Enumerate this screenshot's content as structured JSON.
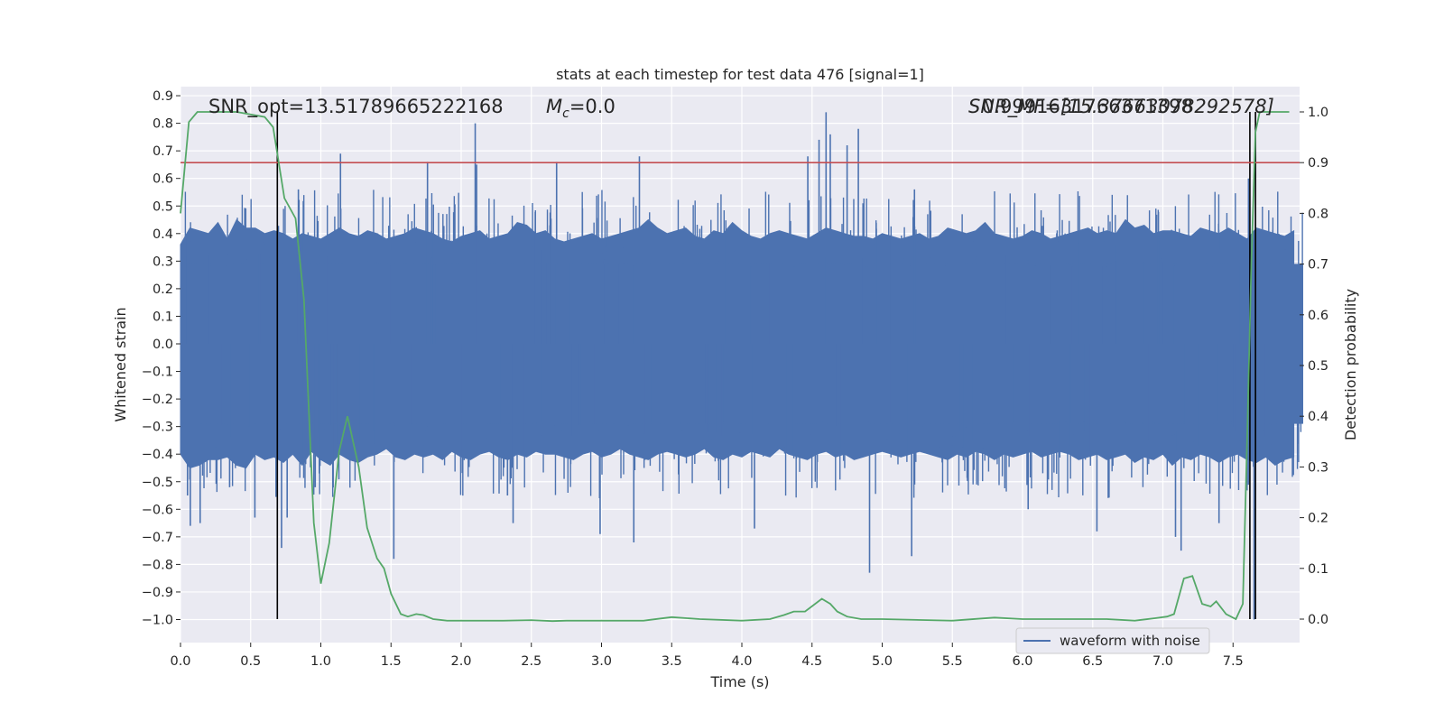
{
  "chart_data": {
    "type": "line",
    "title": "stats at each timestep for test data 476 [signal=1]",
    "xlabel": "Time (s)",
    "ylabel_left": "Whitened strain",
    "ylabel_right": "Detection probability",
    "xlim": [
      0.0,
      8.0
    ],
    "ylim_left": [
      -1.09,
      0.94
    ],
    "ylim_right": [
      -0.05,
      1.05
    ],
    "x_ticks": [
      "0.0",
      "0.5",
      "1.0",
      "1.5",
      "2.0",
      "2.5",
      "3.0",
      "3.5",
      "4.0",
      "4.5",
      "5.0",
      "5.5",
      "6.0",
      "6.5",
      "7.0",
      "7.5"
    ],
    "y_ticks_left": [
      "0.9",
      "0.8",
      "0.7",
      "0.6",
      "0.5",
      "0.4",
      "0.3",
      "0.2",
      "0.1",
      "0.0",
      "-0.1",
      "-0.2",
      "-0.3",
      "-0.4",
      "-0.5",
      "-0.6",
      "-0.7",
      "-0.8",
      "-0.9",
      "-1.0"
    ],
    "y_ticks_right": [
      "1.0",
      "0.9",
      "0.8",
      "0.7",
      "0.6",
      "0.5",
      "0.4",
      "0.3",
      "0.2",
      "0.1",
      "0.0"
    ],
    "annotations": {
      "snr_opt": "SNR_opt=13.51789665222168",
      "mc": "=0.0",
      "mc_symbol": "M",
      "mc_sub": "c",
      "snr_overlap_a": "SNR_MF=[15.37663078292578]",
      "snr_overlap_b": "0.9991631766371398"
    },
    "legend": {
      "placement": "lower-right",
      "entries": [
        "waveform with noise"
      ]
    },
    "threshold_right": 0.9,
    "vlines_time": [
      0.69,
      7.62,
      7.66
    ],
    "waveform": {
      "name": "waveform with noise",
      "color": "#4c72b0",
      "envelope_pos": [
        0.36,
        0.42,
        0.41,
        0.4,
        0.44,
        0.38,
        0.45,
        0.42,
        0.42,
        0.4,
        0.41,
        0.4,
        0.38,
        0.4,
        0.39,
        0.38,
        0.4,
        0.42,
        0.4,
        0.39,
        0.41,
        0.4,
        0.38,
        0.39,
        0.4,
        0.42,
        0.41,
        0.4,
        0.38,
        0.37,
        0.39,
        0.4,
        0.41,
        0.38,
        0.39,
        0.4,
        0.44,
        0.43,
        0.4,
        0.41,
        0.38,
        0.37,
        0.38,
        0.39,
        0.4,
        0.38,
        0.39,
        0.4,
        0.41,
        0.42,
        0.45,
        0.42,
        0.4,
        0.41,
        0.42,
        0.39,
        0.38,
        0.41,
        0.4,
        0.44,
        0.41,
        0.39,
        0.38,
        0.4,
        0.41,
        0.4,
        0.39,
        0.38,
        0.4,
        0.42,
        0.41,
        0.4,
        0.39,
        0.39,
        0.38,
        0.4,
        0.39,
        0.38,
        0.39,
        0.4,
        0.38,
        0.39,
        0.42,
        0.41,
        0.4,
        0.41,
        0.44,
        0.4,
        0.39,
        0.38,
        0.39,
        0.41,
        0.4,
        0.38,
        0.39,
        0.4,
        0.41,
        0.42,
        0.4,
        0.41,
        0.4,
        0.45,
        0.42,
        0.43,
        0.4,
        0.41,
        0.41,
        0.4,
        0.39,
        0.42,
        0.41,
        0.4,
        0.42,
        0.4,
        0.38,
        0.42,
        0.41,
        0.4,
        0.39,
        0.41
      ],
      "envelope_neg": [
        -0.4,
        -0.45,
        -0.44,
        -0.42,
        -0.42,
        -0.41,
        -0.44,
        -0.45,
        -0.4,
        -0.42,
        -0.41,
        -0.43,
        -0.4,
        -0.44,
        -0.39,
        -0.42,
        -0.44,
        -0.4,
        -0.42,
        -0.43,
        -0.41,
        -0.4,
        -0.38,
        -0.41,
        -0.42,
        -0.4,
        -0.41,
        -0.4,
        -0.42,
        -0.39,
        -0.41,
        -0.42,
        -0.4,
        -0.39,
        -0.41,
        -0.42,
        -0.4,
        -0.41,
        -0.39,
        -0.4,
        -0.4,
        -0.41,
        -0.42,
        -0.4,
        -0.39,
        -0.41,
        -0.4,
        -0.38,
        -0.4,
        -0.41,
        -0.42,
        -0.4,
        -0.39,
        -0.4,
        -0.41,
        -0.4,
        -0.38,
        -0.41,
        -0.42,
        -0.4,
        -0.41,
        -0.39,
        -0.4,
        -0.41,
        -0.38,
        -0.4,
        -0.41,
        -0.42,
        -0.4,
        -0.39,
        -0.41,
        -0.4,
        -0.42,
        -0.41,
        -0.4,
        -0.39,
        -0.4,
        -0.41,
        -0.4,
        -0.39,
        -0.4,
        -0.41,
        -0.42,
        -0.4,
        -0.41,
        -0.39,
        -0.4,
        -0.42,
        -0.4,
        -0.41,
        -0.4,
        -0.39,
        -0.41,
        -0.4,
        -0.39,
        -0.4,
        -0.42,
        -0.41,
        -0.4,
        -0.42,
        -0.41,
        -0.4,
        -0.43,
        -0.41,
        -0.42,
        -0.4,
        -0.44,
        -0.41,
        -0.42,
        -0.4,
        -0.41,
        -0.43,
        -0.41,
        -0.4,
        -0.42,
        -0.43,
        -0.41,
        -0.44,
        -0.42,
        -0.41
      ],
      "spikes": [
        {
          "t": 0.05,
          "v": -0.55
        },
        {
          "t": 0.07,
          "v": -0.66
        },
        {
          "t": 0.14,
          "v": -0.65
        },
        {
          "t": 0.35,
          "v": -0.52
        },
        {
          "t": 0.53,
          "v": -0.63
        },
        {
          "t": 0.72,
          "v": -0.74
        },
        {
          "t": 0.76,
          "v": -0.63
        },
        {
          "t": 0.84,
          "v": 0.56
        },
        {
          "t": 0.96,
          "v": -0.52
        },
        {
          "t": 1.14,
          "v": 0.69
        },
        {
          "t": 1.52,
          "v": -0.78
        },
        {
          "t": 1.76,
          "v": 0.66
        },
        {
          "t": 2.1,
          "v": 0.8
        },
        {
          "t": 2.11,
          "v": 0.65
        },
        {
          "t": 2.33,
          "v": -0.55
        },
        {
          "t": 2.37,
          "v": -0.65
        },
        {
          "t": 2.68,
          "v": 0.66
        },
        {
          "t": 2.99,
          "v": -0.69
        },
        {
          "t": 3.23,
          "v": -0.72
        },
        {
          "t": 3.27,
          "v": 0.68
        },
        {
          "t": 4.09,
          "v": -0.67
        },
        {
          "t": 4.47,
          "v": 0.68
        },
        {
          "t": 4.55,
          "v": 0.74
        },
        {
          "t": 4.6,
          "v": 0.84
        },
        {
          "t": 4.63,
          "v": 0.76
        },
        {
          "t": 4.83,
          "v": 0.78
        },
        {
          "t": 4.75,
          "v": 0.72
        },
        {
          "t": 4.91,
          "v": -0.83
        },
        {
          "t": 5.21,
          "v": -0.77
        },
        {
          "t": 5.23,
          "v": 0.56
        },
        {
          "t": 6.04,
          "v": -0.6
        },
        {
          "t": 6.53,
          "v": -0.68
        },
        {
          "t": 7.09,
          "v": -0.7
        },
        {
          "t": 7.13,
          "v": -0.75
        },
        {
          "t": 7.4,
          "v": -0.65
        },
        {
          "t": 7.61,
          "v": 0.6
        },
        {
          "t": 7.65,
          "v": -1.0
        }
      ]
    },
    "detection_probability": {
      "name": "detection probability",
      "color": "#55a868",
      "x": [
        0.0,
        0.06,
        0.12,
        0.2,
        0.4,
        0.6,
        0.66,
        0.74,
        0.82,
        0.88,
        0.95,
        1.0,
        1.06,
        1.13,
        1.19,
        1.27,
        1.33,
        1.4,
        1.45,
        1.5,
        1.57,
        1.62,
        1.68,
        1.73,
        1.8,
        1.9,
        2.1,
        2.3,
        2.5,
        2.65,
        2.75,
        3.0,
        3.3,
        3.5,
        3.7,
        4.0,
        4.2,
        4.3,
        4.37,
        4.45,
        4.57,
        4.63,
        4.68,
        4.75,
        4.85,
        5.0,
        5.5,
        5.8,
        6.0,
        6.6,
        6.8,
        6.95,
        7.03,
        7.08,
        7.15,
        7.21,
        7.28,
        7.34,
        7.38,
        7.45,
        7.52,
        7.57,
        7.6,
        7.63,
        7.66,
        7.69,
        7.72,
        7.9
      ],
      "values": [
        0.8,
        0.98,
        1.0,
        1.0,
        1.0,
        0.99,
        0.97,
        0.83,
        0.79,
        0.63,
        0.19,
        0.07,
        0.15,
        0.33,
        0.4,
        0.3,
        0.18,
        0.12,
        0.1,
        0.05,
        0.01,
        0.005,
        0.01,
        0.008,
        0.0,
        -0.003,
        -0.003,
        -0.003,
        -0.002,
        -0.004,
        -0.003,
        -0.003,
        -0.003,
        0.004,
        0.0,
        -0.003,
        0.0,
        0.008,
        0.015,
        0.015,
        0.04,
        0.03,
        0.015,
        0.005,
        0.0,
        0.0,
        -0.003,
        0.003,
        0.0,
        0.0,
        -0.003,
        0.002,
        0.005,
        0.01,
        0.08,
        0.085,
        0.03,
        0.025,
        0.035,
        0.01,
        0.0,
        0.03,
        0.35,
        0.7,
        0.96,
        1.0,
        1.0,
        1.0
      ]
    },
    "threshold_color": "#c44e52"
  }
}
